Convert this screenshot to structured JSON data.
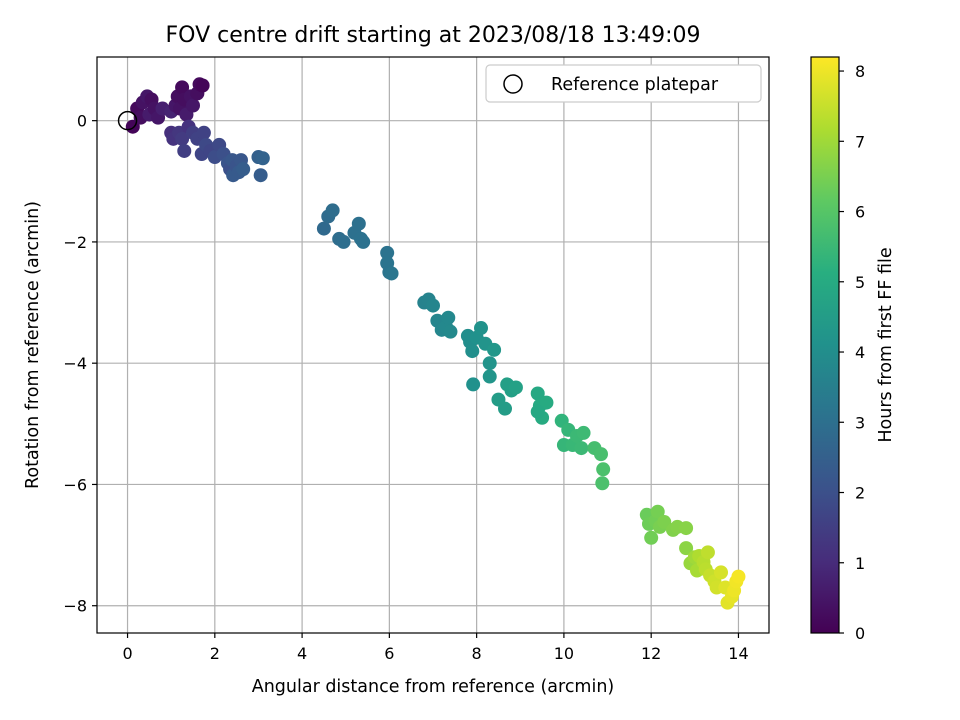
{
  "chart_data": {
    "type": "scatter",
    "title": "FOV centre drift starting at 2023/08/18 13:49:09",
    "xlabel": "Angular distance from reference (arcmin)",
    "ylabel": "Rotation from reference (arcmin)",
    "xlim": [
      -0.7,
      14.7
    ],
    "ylim": [
      -8.45,
      1.05
    ],
    "xticks": [
      0,
      2,
      4,
      6,
      8,
      10,
      12,
      14
    ],
    "yticks": [
      0,
      -2,
      -4,
      -6,
      -8
    ],
    "grid": true,
    "legend": {
      "position": "top-right",
      "entries": [
        "Reference platepar"
      ]
    },
    "colorbar": {
      "label": "Hours from first FF file",
      "range": [
        0,
        8.2
      ],
      "ticks": [
        0,
        1,
        2,
        3,
        4,
        5,
        6,
        7,
        8
      ],
      "colormap": "viridis"
    },
    "reference": {
      "name": "Reference platepar",
      "x": 0,
      "y": 0
    },
    "series": [
      {
        "points": [
          [
            0.12,
            -0.1,
            0.1
          ],
          [
            0.22,
            0.2,
            0.2
          ],
          [
            0.3,
            0.05,
            0.3
          ],
          [
            0.35,
            0.3,
            0.4
          ],
          [
            0.45,
            0.4,
            0.5
          ],
          [
            0.5,
            0.1,
            0.6
          ],
          [
            0.55,
            0.35,
            0.3
          ],
          [
            0.62,
            0.2,
            0.4
          ],
          [
            0.7,
            0.05,
            0.5
          ],
          [
            0.8,
            0.2,
            0.7
          ],
          [
            1.0,
            0.15,
            0.8
          ],
          [
            1.1,
            0.25,
            0.5
          ],
          [
            1.15,
            0.4,
            0.3
          ],
          [
            1.2,
            0.2,
            0.4
          ],
          [
            1.25,
            0.55,
            0.2
          ],
          [
            1.3,
            0.35,
            0.3
          ],
          [
            1.35,
            0.1,
            0.6
          ],
          [
            1.45,
            0.4,
            0.4
          ],
          [
            1.5,
            0.25,
            0.5
          ],
          [
            1.6,
            0.45,
            0.3
          ],
          [
            1.65,
            0.6,
            0.2
          ],
          [
            1.72,
            0.58,
            0.1
          ],
          [
            1.0,
            -0.2,
            1.1
          ],
          [
            1.05,
            -0.3,
            1.2
          ],
          [
            1.18,
            -0.2,
            1.3
          ],
          [
            1.25,
            -0.3,
            1.4
          ],
          [
            1.3,
            -0.5,
            1.5
          ],
          [
            1.4,
            -0.1,
            1.2
          ],
          [
            1.5,
            -0.2,
            1.5
          ],
          [
            1.6,
            -0.3,
            1.6
          ],
          [
            1.7,
            -0.55,
            1.7
          ],
          [
            1.75,
            -0.2,
            1.6
          ],
          [
            1.8,
            -0.4,
            1.8
          ],
          [
            1.9,
            -0.5,
            1.7
          ],
          [
            2.0,
            -0.6,
            1.9
          ],
          [
            2.1,
            -0.4,
            1.8
          ],
          [
            2.2,
            -0.55,
            2.0
          ],
          [
            2.3,
            -0.7,
            2.1
          ],
          [
            2.35,
            -0.8,
            2.0
          ],
          [
            2.4,
            -0.65,
            2.2
          ],
          [
            2.42,
            -0.9,
            2.3
          ],
          [
            2.5,
            -0.75,
            2.1
          ],
          [
            2.55,
            -0.85,
            2.3
          ],
          [
            2.6,
            -0.65,
            2.2
          ],
          [
            2.65,
            -0.8,
            2.4
          ],
          [
            3.0,
            -0.6,
            2.5
          ],
          [
            3.05,
            -0.9,
            2.4
          ],
          [
            3.1,
            -0.62,
            2.6
          ],
          [
            4.5,
            -1.78,
            2.8
          ],
          [
            4.6,
            -1.58,
            2.85
          ],
          [
            4.7,
            -1.48,
            2.9
          ],
          [
            4.85,
            -1.95,
            2.9
          ],
          [
            4.95,
            -2.0,
            2.95
          ],
          [
            5.2,
            -1.85,
            3.0
          ],
          [
            5.3,
            -1.7,
            3.0
          ],
          [
            5.35,
            -1.95,
            3.05
          ],
          [
            5.4,
            -2.0,
            3.05
          ],
          [
            5.95,
            -2.18,
            3.1
          ],
          [
            5.95,
            -2.35,
            3.15
          ],
          [
            6.0,
            -2.5,
            3.15
          ],
          [
            6.05,
            -2.52,
            3.2
          ],
          [
            6.8,
            -3.0,
            3.6
          ],
          [
            6.9,
            -2.95,
            3.65
          ],
          [
            7.0,
            -3.05,
            3.7
          ],
          [
            7.1,
            -3.3,
            3.7
          ],
          [
            7.2,
            -3.45,
            3.75
          ],
          [
            7.3,
            -3.4,
            3.8
          ],
          [
            7.35,
            -3.25,
            3.8
          ],
          [
            7.4,
            -3.48,
            3.85
          ],
          [
            7.8,
            -3.55,
            4.0
          ],
          [
            7.85,
            -3.65,
            4.0
          ],
          [
            7.9,
            -3.8,
            4.05
          ],
          [
            7.92,
            -4.35,
            4.1
          ],
          [
            8.0,
            -3.58,
            4.1
          ],
          [
            8.1,
            -3.42,
            4.15
          ],
          [
            8.2,
            -3.68,
            4.2
          ],
          [
            8.3,
            -4.0,
            4.2
          ],
          [
            8.3,
            -4.22,
            4.25
          ],
          [
            8.4,
            -3.78,
            4.3
          ],
          [
            8.5,
            -4.6,
            4.5
          ],
          [
            8.65,
            -4.75,
            4.5
          ],
          [
            8.7,
            -4.35,
            4.6
          ],
          [
            8.8,
            -4.45,
            4.6
          ],
          [
            8.9,
            -4.4,
            4.65
          ],
          [
            9.4,
            -4.5,
            4.9
          ],
          [
            9.45,
            -4.7,
            4.95
          ],
          [
            9.5,
            -4.9,
            5.0
          ],
          [
            9.6,
            -4.65,
            5.0
          ],
          [
            9.4,
            -4.8,
            4.9
          ],
          [
            9.95,
            -4.95,
            5.3
          ],
          [
            10.0,
            -5.35,
            5.4
          ],
          [
            10.1,
            -5.1,
            5.4
          ],
          [
            10.2,
            -5.35,
            5.45
          ],
          [
            10.3,
            -5.2,
            5.5
          ],
          [
            10.4,
            -5.4,
            5.5
          ],
          [
            10.45,
            -5.15,
            5.55
          ],
          [
            10.7,
            -5.4,
            5.7
          ],
          [
            10.85,
            -5.5,
            5.75
          ],
          [
            10.9,
            -5.75,
            5.8
          ],
          [
            10.88,
            -5.98,
            5.8
          ],
          [
            11.9,
            -6.5,
            6.3
          ],
          [
            11.95,
            -6.65,
            6.35
          ],
          [
            12.0,
            -6.88,
            6.4
          ],
          [
            12.1,
            -6.6,
            6.4
          ],
          [
            12.15,
            -6.45,
            6.45
          ],
          [
            12.2,
            -6.7,
            6.5
          ],
          [
            12.3,
            -6.62,
            6.55
          ],
          [
            12.5,
            -6.75,
            6.6
          ],
          [
            12.6,
            -6.7,
            6.65
          ],
          [
            12.8,
            -6.72,
            6.7
          ],
          [
            12.8,
            -7.05,
            6.75
          ],
          [
            12.9,
            -7.3,
            6.9
          ],
          [
            13.0,
            -7.2,
            7.0
          ],
          [
            13.05,
            -7.42,
            7.1
          ],
          [
            13.1,
            -7.18,
            7.2
          ],
          [
            13.2,
            -7.28,
            7.3
          ],
          [
            13.25,
            -7.4,
            7.35
          ],
          [
            13.3,
            -7.12,
            7.4
          ],
          [
            13.35,
            -7.5,
            7.5
          ],
          [
            13.45,
            -7.6,
            7.6
          ],
          [
            13.5,
            -7.7,
            7.65
          ],
          [
            13.6,
            -7.45,
            7.7
          ],
          [
            13.7,
            -7.7,
            7.8
          ],
          [
            13.75,
            -7.95,
            7.85
          ],
          [
            13.85,
            -7.85,
            7.9
          ],
          [
            13.9,
            -7.75,
            8.0
          ],
          [
            13.95,
            -7.6,
            8.05
          ],
          [
            14.0,
            -7.52,
            8.1
          ]
        ]
      }
    ]
  }
}
